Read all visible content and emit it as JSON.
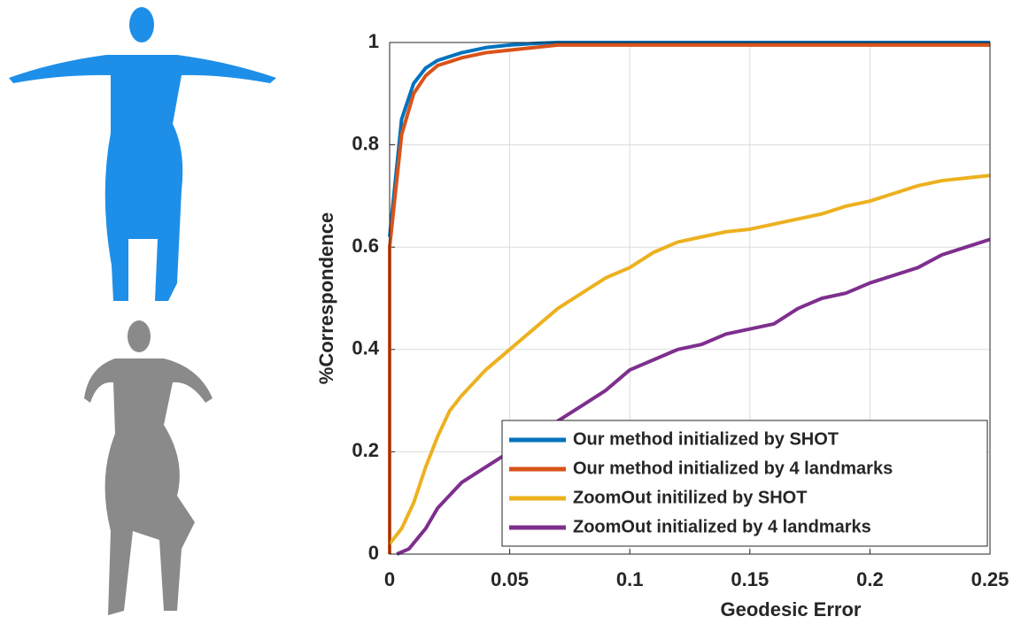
{
  "chart_data": {
    "type": "line",
    "xlabel": "Geodesic Error",
    "ylabel": "%Correspondence",
    "xlim": [
      0,
      0.25
    ],
    "ylim": [
      0,
      1
    ],
    "xticks": [
      0,
      0.05,
      0.1,
      0.15,
      0.2,
      0.25
    ],
    "yticks": [
      0,
      0.2,
      0.4,
      0.6,
      0.8,
      1
    ],
    "grid": true,
    "legend": "lower right",
    "series": [
      {
        "name": "Our method initialized by SHOT",
        "color": "#0072BD",
        "x": [
          0,
          0.005,
          0.01,
          0.015,
          0.02,
          0.03,
          0.04,
          0.05,
          0.06,
          0.07,
          0.08,
          0.1,
          0.125,
          0.15,
          0.175,
          0.2,
          0.225,
          0.25
        ],
        "values": [
          0.62,
          0.85,
          0.92,
          0.95,
          0.965,
          0.98,
          0.99,
          0.995,
          0.998,
          1,
          1,
          1,
          1,
          1,
          1,
          1,
          1,
          1
        ]
      },
      {
        "name": "Our method initialized by 4 landmarks",
        "color": "#D95319",
        "x": [
          0,
          0,
          0.005,
          0.01,
          0.015,
          0.02,
          0.03,
          0.04,
          0.05,
          0.06,
          0.07,
          0.08,
          0.1,
          0.15,
          0.2,
          0.25
        ],
        "values": [
          0,
          0.6,
          0.82,
          0.9,
          0.935,
          0.955,
          0.97,
          0.98,
          0.985,
          0.99,
          0.995,
          0.995,
          0.995,
          0.995,
          0.995,
          0.995
        ]
      },
      {
        "name": "ZoomOut initilized by SHOT",
        "color": "#EDB120",
        "x": [
          0,
          0.005,
          0.01,
          0.015,
          0.02,
          0.025,
          0.03,
          0.04,
          0.05,
          0.06,
          0.07,
          0.08,
          0.09,
          0.1,
          0.11,
          0.12,
          0.13,
          0.14,
          0.15,
          0.16,
          0.17,
          0.18,
          0.19,
          0.2,
          0.21,
          0.22,
          0.23,
          0.24,
          0.25
        ],
        "values": [
          0.02,
          0.05,
          0.1,
          0.17,
          0.23,
          0.28,
          0.31,
          0.36,
          0.4,
          0.44,
          0.48,
          0.51,
          0.54,
          0.56,
          0.59,
          0.61,
          0.62,
          0.63,
          0.635,
          0.645,
          0.655,
          0.665,
          0.68,
          0.69,
          0.705,
          0.72,
          0.73,
          0.735,
          0.74
        ]
      },
      {
        "name": "ZoomOut initialized by 4 landmarks",
        "color": "#7E2F8E",
        "x": [
          0.003,
          0.008,
          0.015,
          0.02,
          0.03,
          0.04,
          0.05,
          0.06,
          0.07,
          0.08,
          0.09,
          0.1,
          0.11,
          0.12,
          0.13,
          0.14,
          0.15,
          0.16,
          0.17,
          0.18,
          0.19,
          0.2,
          0.21,
          0.22,
          0.23,
          0.24,
          0.25
        ],
        "values": [
          0,
          0.01,
          0.05,
          0.09,
          0.14,
          0.17,
          0.2,
          0.23,
          0.26,
          0.29,
          0.32,
          0.36,
          0.38,
          0.4,
          0.41,
          0.43,
          0.44,
          0.45,
          0.48,
          0.5,
          0.51,
          0.53,
          0.545,
          0.56,
          0.585,
          0.6,
          0.615
        ]
      }
    ]
  }
}
